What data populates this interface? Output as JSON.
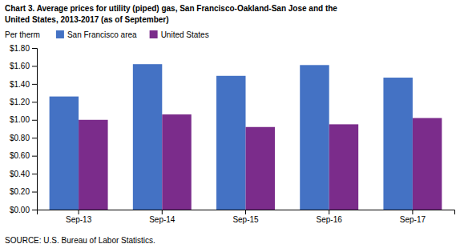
{
  "chart_data": {
    "type": "bar",
    "title": "Chart 3. Average prices for utility (piped) gas, San Francisco-Oakland-San Jose and the",
    "subtitle": "United States, 2013-2017  (as of September)",
    "ylabel": "Per therm",
    "source": "SOURCE: U.S. Bureau of Labor Statistics.",
    "categories": [
      "Sep-13",
      "Sep-14",
      "Sep-15",
      "Sep-16",
      "Sep-17"
    ],
    "series": [
      {
        "name": "San Francisco area",
        "color": "#4472C4",
        "values": [
          1.26,
          1.62,
          1.49,
          1.61,
          1.47
        ]
      },
      {
        "name": "United States",
        "color": "#7B2C8B",
        "values": [
          1.0,
          1.06,
          0.92,
          0.95,
          1.02
        ]
      }
    ],
    "ylim": [
      0,
      1.8
    ],
    "yticks": [
      {
        "value": 0.0,
        "label": "$0.00"
      },
      {
        "value": 0.2,
        "label": "$0.20"
      },
      {
        "value": 0.4,
        "label": "$0.40"
      },
      {
        "value": 0.6,
        "label": "$0.60"
      },
      {
        "value": 0.8,
        "label": "$0.80"
      },
      {
        "value": 1.0,
        "label": "$1.00"
      },
      {
        "value": 1.2,
        "label": "$1.20"
      },
      {
        "value": 1.4,
        "label": "$1.40"
      },
      {
        "value": 1.6,
        "label": "$1.60"
      },
      {
        "value": 1.8,
        "label": "$1.80"
      }
    ],
    "grid": false,
    "legend": "upper left"
  }
}
